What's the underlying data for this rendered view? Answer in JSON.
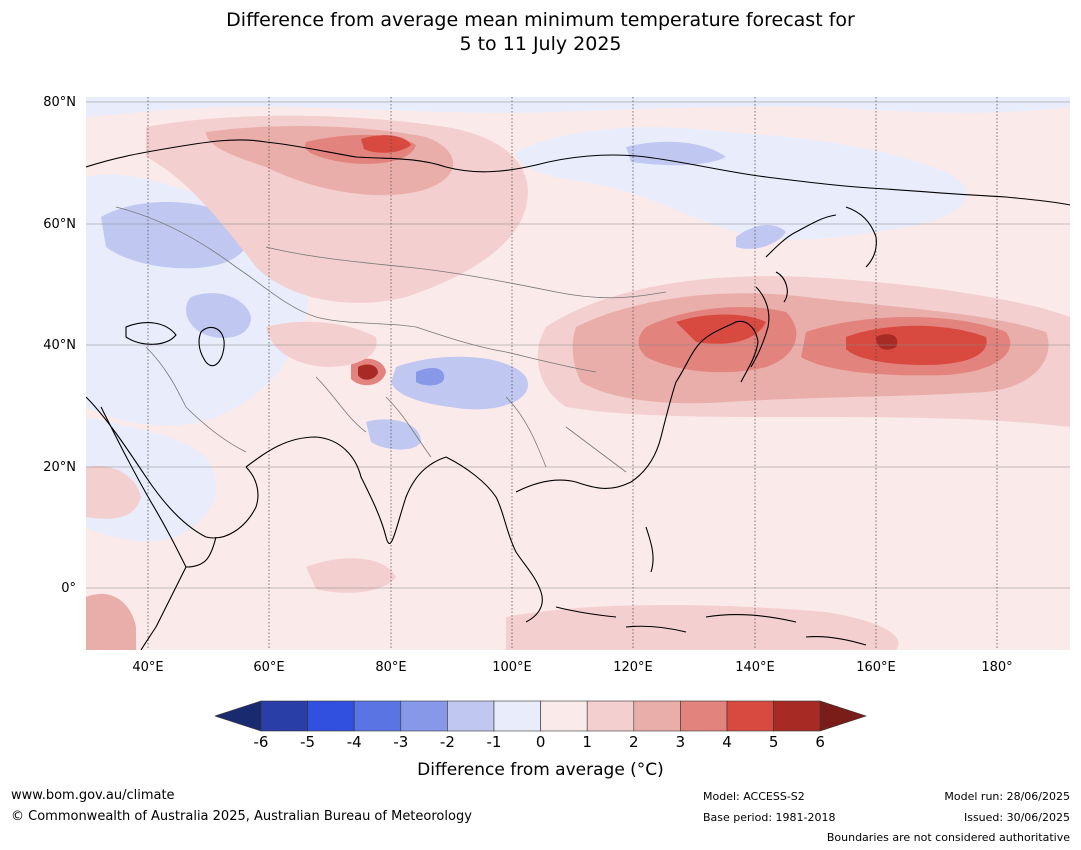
{
  "title": {
    "line1": "Difference from average mean minimum temperature forecast for",
    "line2": "5 to 11 July 2025"
  },
  "map": {
    "lat_labels": [
      "80°N",
      "60°N",
      "40°N",
      "20°N",
      "0°"
    ],
    "lon_labels": [
      "40°E",
      "60°E",
      "80°E",
      "100°E",
      "120°E",
      "140°E",
      "160°E",
      "180°"
    ]
  },
  "colorbar": {
    "ticks": [
      "-6",
      "-5",
      "-4",
      "-3",
      "-2",
      "-1",
      "0",
      "1",
      "2",
      "3",
      "4",
      "5",
      "6"
    ],
    "colors": {
      "below_-6": "#1a2a6e",
      "-6_-5": "#2a3ea8",
      "-5_-4": "#3150e0",
      "-4_-3": "#5b74e3",
      "-3_-2": "#8898e8",
      "-2_-1": "#c0c8f2",
      "-1_0": "#e8ecfb",
      "0_1": "#fbeaea",
      "1_2": "#f3cfcf",
      "2_3": "#eaaeaa",
      "3_4": "#e3837d",
      "4_5": "#d84a40",
      "5_6": "#a82a24",
      "above_6": "#7a1c18"
    },
    "label": "Difference from average (°C)"
  },
  "footer": {
    "url": "www.bom.gov.au/climate",
    "copyright": "© Commonwealth of Australia 2025, Australian Bureau of Meteorology",
    "model": "Model: ACCESS-S2",
    "base_period": "Base period: 1981-2018",
    "model_run": "Model run: 28/06/2025",
    "issued": "Issued: 30/06/2025",
    "disclaimer": "Boundaries are not considered authoritative"
  }
}
